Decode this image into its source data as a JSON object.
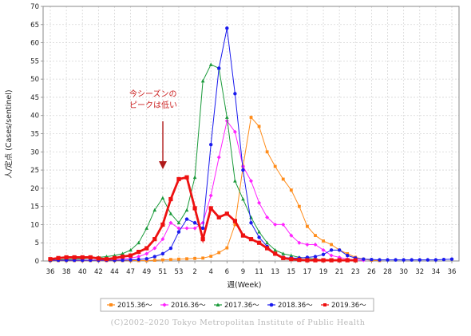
{
  "chart_data": {
    "type": "line",
    "xlabel": "週(Week)",
    "ylabel": "人/定点 (Cases/sentinel)",
    "ylim": [
      0,
      70
    ],
    "yticks": [
      0,
      5,
      10,
      15,
      20,
      25,
      30,
      35,
      40,
      45,
      50,
      55,
      60,
      65,
      70
    ],
    "grid": true,
    "legend_position": "bottom",
    "x_tick_labels": [
      "36",
      "38",
      "40",
      "42",
      "44",
      "47",
      "49",
      "51",
      "53",
      "2",
      "4",
      "6",
      "9",
      "11",
      "13",
      "15",
      "17",
      "19",
      "21",
      "23",
      "26",
      "28",
      "30",
      "32",
      "34",
      "36"
    ],
    "x_tick_indices": [
      0,
      2,
      4,
      6,
      8,
      10,
      12,
      14,
      16,
      18,
      20,
      22,
      24,
      26,
      28,
      30,
      32,
      34,
      36,
      38,
      40,
      42,
      44,
      46,
      48,
      50
    ],
    "annotation": {
      "lines": [
        "今シーズンの",
        "ピークは低い"
      ],
      "color": "#cc2222"
    },
    "series": [
      {
        "name": "2015.36～",
        "color": "#ff8c1a",
        "marker": "square",
        "values": [
          0.1,
          0.1,
          0.1,
          0.1,
          0.1,
          0.1,
          0.1,
          0.1,
          0.1,
          0.1,
          0.1,
          0.1,
          0.1,
          0.2,
          0.3,
          0.4,
          0.5,
          0.6,
          0.7,
          0.8,
          1.3,
          2.3,
          3.6,
          10.0,
          26.0,
          39.5,
          37.0,
          30.0,
          26.0,
          22.5,
          19.5,
          15.0,
          9.5,
          7.0,
          5.5,
          4.5,
          3.0,
          2.0,
          1.0,
          0.5,
          0.2,
          0.1
        ]
      },
      {
        "name": "2016.36～",
        "color": "#ff22ff",
        "marker": "diamond",
        "values": [
          0.2,
          0.2,
          0.2,
          0.2,
          0.2,
          0.2,
          0.2,
          0.2,
          0.3,
          0.5,
          0.8,
          1.2,
          2.0,
          3.5,
          6.0,
          10.5,
          9.0,
          9.0,
          9.0,
          10.5,
          18.0,
          28.5,
          38.5,
          35.5,
          26.0,
          22.0,
          16.0,
          12.0,
          10.0,
          10.0,
          7.0,
          5.0,
          4.5,
          4.5,
          3.0,
          1.5,
          1.0,
          0.5,
          0.3,
          0.2
        ]
      },
      {
        "name": "2017.36～",
        "color": "#1a9a3a",
        "marker": "triangle",
        "values": [
          0.2,
          0.3,
          0.4,
          0.5,
          0.6,
          0.8,
          1.0,
          1.2,
          1.5,
          2.0,
          3.0,
          5.0,
          9.0,
          14.0,
          17.3,
          13.0,
          10.5,
          14.0,
          23.0,
          49.5,
          54.0,
          53.0,
          39.5,
          22.0,
          17.0,
          12.0,
          8.0,
          5.0,
          3.0,
          2.0,
          1.5,
          1.0,
          0.8,
          0.5,
          0.3,
          0.2
        ]
      },
      {
        "name": "2018.36～",
        "color": "#1a1aee",
        "marker": "circle",
        "values": [
          0.2,
          0.2,
          0.2,
          0.2,
          0.2,
          0.2,
          0.2,
          0.2,
          0.2,
          0.2,
          0.3,
          0.4,
          0.6,
          1.2,
          2.0,
          3.5,
          8.0,
          11.5,
          10.5,
          9.0,
          32.0,
          53.0,
          64.0,
          46.0,
          25.0,
          10.5,
          6.5,
          4.0,
          2.0,
          1.0,
          0.8,
          0.8,
          1.0,
          1.2,
          1.8,
          3.0,
          3.0,
          1.5,
          0.8,
          0.5,
          0.4,
          0.3,
          0.3,
          0.3,
          0.3,
          0.3,
          0.3,
          0.3,
          0.3,
          0.4,
          0.5
        ]
      },
      {
        "name": "2019.36～",
        "color": "#ee1111",
        "marker": "square",
        "values": [
          0.5,
          0.8,
          1.0,
          1.0,
          1.0,
          1.0,
          0.7,
          0.5,
          0.8,
          1.2,
          1.5,
          2.5,
          3.5,
          6.0,
          10.0,
          17.0,
          22.5,
          23.0,
          14.5,
          6.0,
          14.5,
          12.0,
          13.0,
          11.0,
          7.0,
          6.0,
          5.0,
          3.5,
          2.0,
          0.8,
          0.5,
          0.3,
          0.2,
          0.2,
          0.2,
          0.2,
          0.2,
          0.2,
          0.2
        ]
      }
    ]
  },
  "copyright": "(C)2002–2020 Tokyo Metropolitan Institute of Public Health"
}
